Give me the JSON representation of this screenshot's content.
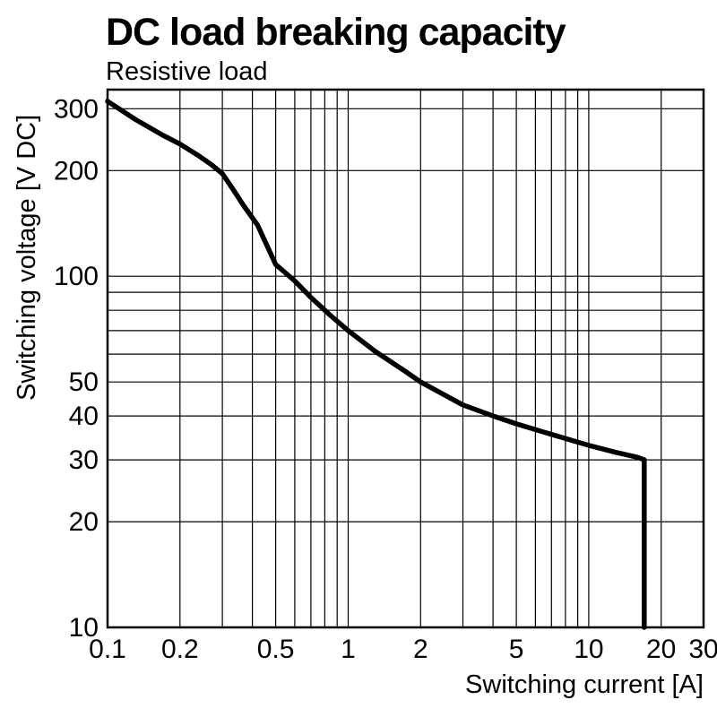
{
  "chart_data": {
    "type": "line",
    "title": "DC load breaking capacity",
    "subtitle": "Resistive load",
    "xlabel": "Switching current [A]",
    "ylabel": "Switching voltage [V DC]",
    "x_scale": "log",
    "y_scale": "log",
    "xlim": [
      0.1,
      30
    ],
    "ylim": [
      10,
      340
    ],
    "grid": true,
    "legend": "none",
    "line_color": "#000000",
    "grid_color": "#000000",
    "x_gridlines": [
      0.2,
      0.3,
      0.4,
      0.5,
      0.6,
      0.7,
      0.8,
      0.9,
      1,
      2,
      3,
      4,
      5,
      6,
      7,
      8,
      9,
      10,
      20
    ],
    "y_gridlines": [
      20,
      30,
      40,
      50,
      60,
      70,
      80,
      90,
      100,
      200,
      300
    ],
    "x_ticks": [
      {
        "v": 0.1,
        "label": "0.1"
      },
      {
        "v": 0.2,
        "label": "0.2"
      },
      {
        "v": 0.5,
        "label": "0.5"
      },
      {
        "v": 1,
        "label": "1"
      },
      {
        "v": 2,
        "label": "2"
      },
      {
        "v": 5,
        "label": "5"
      },
      {
        "v": 10,
        "label": "10"
      },
      {
        "v": 20,
        "label": "20"
      },
      {
        "v": 30,
        "label": "30"
      }
    ],
    "y_ticks": [
      {
        "v": 300,
        "label": "300"
      },
      {
        "v": 200,
        "label": "200"
      },
      {
        "v": 100,
        "label": "100"
      },
      {
        "v": 50,
        "label": "50"
      },
      {
        "v": 40,
        "label": "40"
      },
      {
        "v": 30,
        "label": "30"
      },
      {
        "v": 20,
        "label": "20"
      },
      {
        "v": 10,
        "label": "10"
      }
    ],
    "series": [
      {
        "name": "Resistive load",
        "points": [
          [
            0.1,
            315
          ],
          [
            0.13,
            280
          ],
          [
            0.17,
            252
          ],
          [
            0.2,
            238
          ],
          [
            0.24,
            220
          ],
          [
            0.27,
            208
          ],
          [
            0.3,
            196
          ],
          [
            0.33,
            178
          ],
          [
            0.37,
            158
          ],
          [
            0.42,
            140
          ],
          [
            0.5,
            108
          ],
          [
            0.6,
            97
          ],
          [
            0.7,
            87
          ],
          [
            0.85,
            77
          ],
          [
            1,
            70
          ],
          [
            1.3,
            61
          ],
          [
            1.7,
            54
          ],
          [
            2,
            50
          ],
          [
            2.5,
            46
          ],
          [
            3,
            43
          ],
          [
            4,
            40
          ],
          [
            5,
            38
          ],
          [
            6.5,
            36
          ],
          [
            8,
            34.5
          ],
          [
            10,
            33
          ],
          [
            13,
            31.5
          ],
          [
            16,
            30.5
          ],
          [
            17,
            30
          ],
          [
            17,
            10
          ]
        ]
      }
    ]
  }
}
